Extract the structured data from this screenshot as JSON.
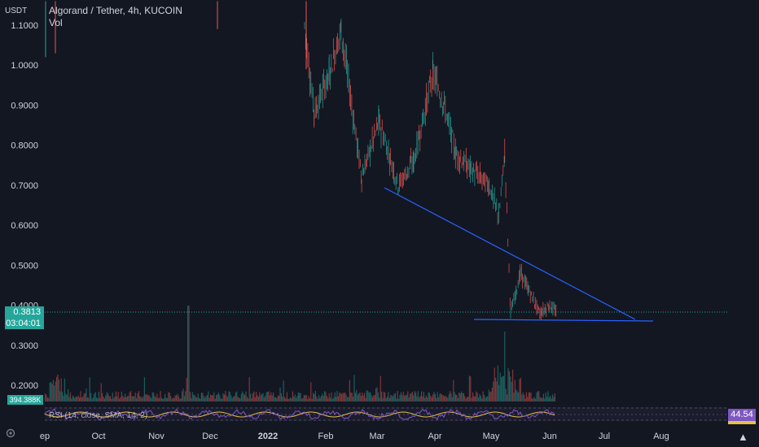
{
  "legend": {
    "title": "Algorand / Tether, 4h, KUCOIN",
    "vol_label": "Vol"
  },
  "price_axis": {
    "unit": "USDT",
    "ticks": [
      "1.1000",
      "1.0000",
      "0.9000",
      "0.8000",
      "0.7000",
      "0.6000",
      "0.5000",
      "0.4000",
      "0.3000",
      "0.2000"
    ]
  },
  "time_axis": {
    "ticks": [
      "ep",
      "Oct",
      "Nov",
      "Dec",
      "2022",
      "Feb",
      "Mar",
      "Apr",
      "May",
      "Jun",
      "Jul",
      "Aug"
    ]
  },
  "current_price": {
    "value": "0.3813",
    "countdown": "03:04:01"
  },
  "volume_badge": "394.388K",
  "rsi": {
    "label": "RSI (14, close, SMA, 14, 2)",
    "value": "44.54"
  },
  "colors": {
    "background": "#131722",
    "up": "#26a69a",
    "down": "#ef5350",
    "trendline": "#2962ff",
    "rsi_line": "#7e57c2",
    "rsi_ma": "#e7c04a"
  },
  "icons": [
    "gear-icon",
    "tradingview-logo-icon"
  ],
  "chart_data": {
    "type": "candlestick",
    "title": "Algorand / Tether, 4h, KUCOIN",
    "xlabel": "",
    "ylabel": "USDT",
    "ylim": [
      0.18,
      1.15
    ],
    "x": [
      "2021-09",
      "2021-10",
      "2021-11",
      "2021-12",
      "2022-01",
      "2022-02",
      "2022-03",
      "2022-04",
      "2022-05",
      "2022-06",
      "2022-07",
      "2022-08"
    ],
    "series": [
      {
        "values": [
          {
            "x": "2022-01-20",
            "y": 1.1
          },
          {
            "x": "2022-01-25",
            "y": 0.88
          },
          {
            "x": "2022-02-03",
            "y": 0.98
          },
          {
            "x": "2022-02-10",
            "y": 1.09
          },
          {
            "x": "2022-02-22",
            "y": 0.72
          },
          {
            "x": "2022-03-02",
            "y": 0.86
          },
          {
            "x": "2022-03-12",
            "y": 0.7
          },
          {
            "x": "2022-03-20",
            "y": 0.76
          },
          {
            "x": "2022-03-30",
            "y": 0.98
          },
          {
            "x": "2022-04-06",
            "y": 0.9
          },
          {
            "x": "2022-04-12",
            "y": 0.78
          },
          {
            "x": "2022-04-20",
            "y": 0.74
          },
          {
            "x": "2022-04-30",
            "y": 0.7
          },
          {
            "x": "2022-05-05",
            "y": 0.62
          },
          {
            "x": "2022-05-08",
            "y": 0.78
          },
          {
            "x": "2022-05-11",
            "y": 0.38
          },
          {
            "x": "2022-05-16",
            "y": 0.48
          },
          {
            "x": "2022-05-20",
            "y": 0.44
          },
          {
            "x": "2022-05-26",
            "y": 0.38
          },
          {
            "x": "2022-06-01",
            "y": 0.4
          },
          {
            "x": "2022-06-05",
            "y": 0.38
          }
        ]
      }
    ],
    "annotations": [
      {
        "type": "trendline",
        "from": {
          "x": "2022-03-02",
          "y": 0.7
        },
        "to": {
          "x": "2022-07-18",
          "y": 0.36
        }
      },
      {
        "type": "support",
        "from": {
          "x": "2022-04-25",
          "y": 0.36
        },
        "to": {
          "x": "2022-07-20",
          "y": 0.36
        }
      }
    ],
    "grid": false,
    "legend": "top-left"
  }
}
